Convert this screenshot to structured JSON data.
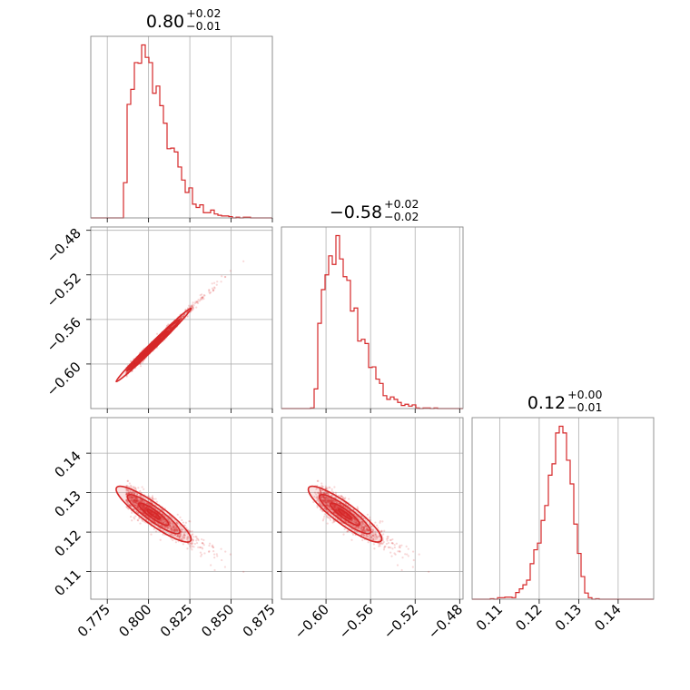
{
  "chart_data": {
    "type": "corner",
    "color": "#d62728",
    "parameters": [
      {
        "range": [
          0.765,
          0.875
        ],
        "ticks": [
          0.775,
          0.8,
          0.825,
          0.85,
          0.875
        ],
        "tick_labels": [
          "0.775",
          "0.800",
          "0.825",
          "0.850",
          "0.875"
        ],
        "title": {
          "value": "0.80",
          "plus": "+0.02",
          "minus": "−0.01"
        },
        "median": 0.803,
        "sd": 0.011,
        "skew": 0.55
      },
      {
        "range": [
          -0.64,
          -0.477
        ],
        "ticks": [
          -0.6,
          -0.56,
          -0.52,
          -0.48
        ],
        "tick_labels": [
          "−0.60",
          "−0.56",
          "−0.52",
          "−0.48"
        ],
        "title": {
          "value": "−0.58",
          "plus": "+0.02",
          "minus": "−0.02"
        },
        "median": -0.583,
        "sd": 0.016,
        "skew": 0.55
      },
      {
        "range": [
          0.103,
          0.149
        ],
        "ticks": [
          0.11,
          0.12,
          0.13,
          0.14
        ],
        "tick_labels": [
          "0.11",
          "0.12",
          "0.13",
          "0.14"
        ],
        "title": {
          "value": "0.12",
          "plus": "+0.00",
          "minus": "−0.01"
        },
        "median": 0.1245,
        "sd": 0.0035,
        "skew": -0.2
      }
    ],
    "grid": true
  }
}
